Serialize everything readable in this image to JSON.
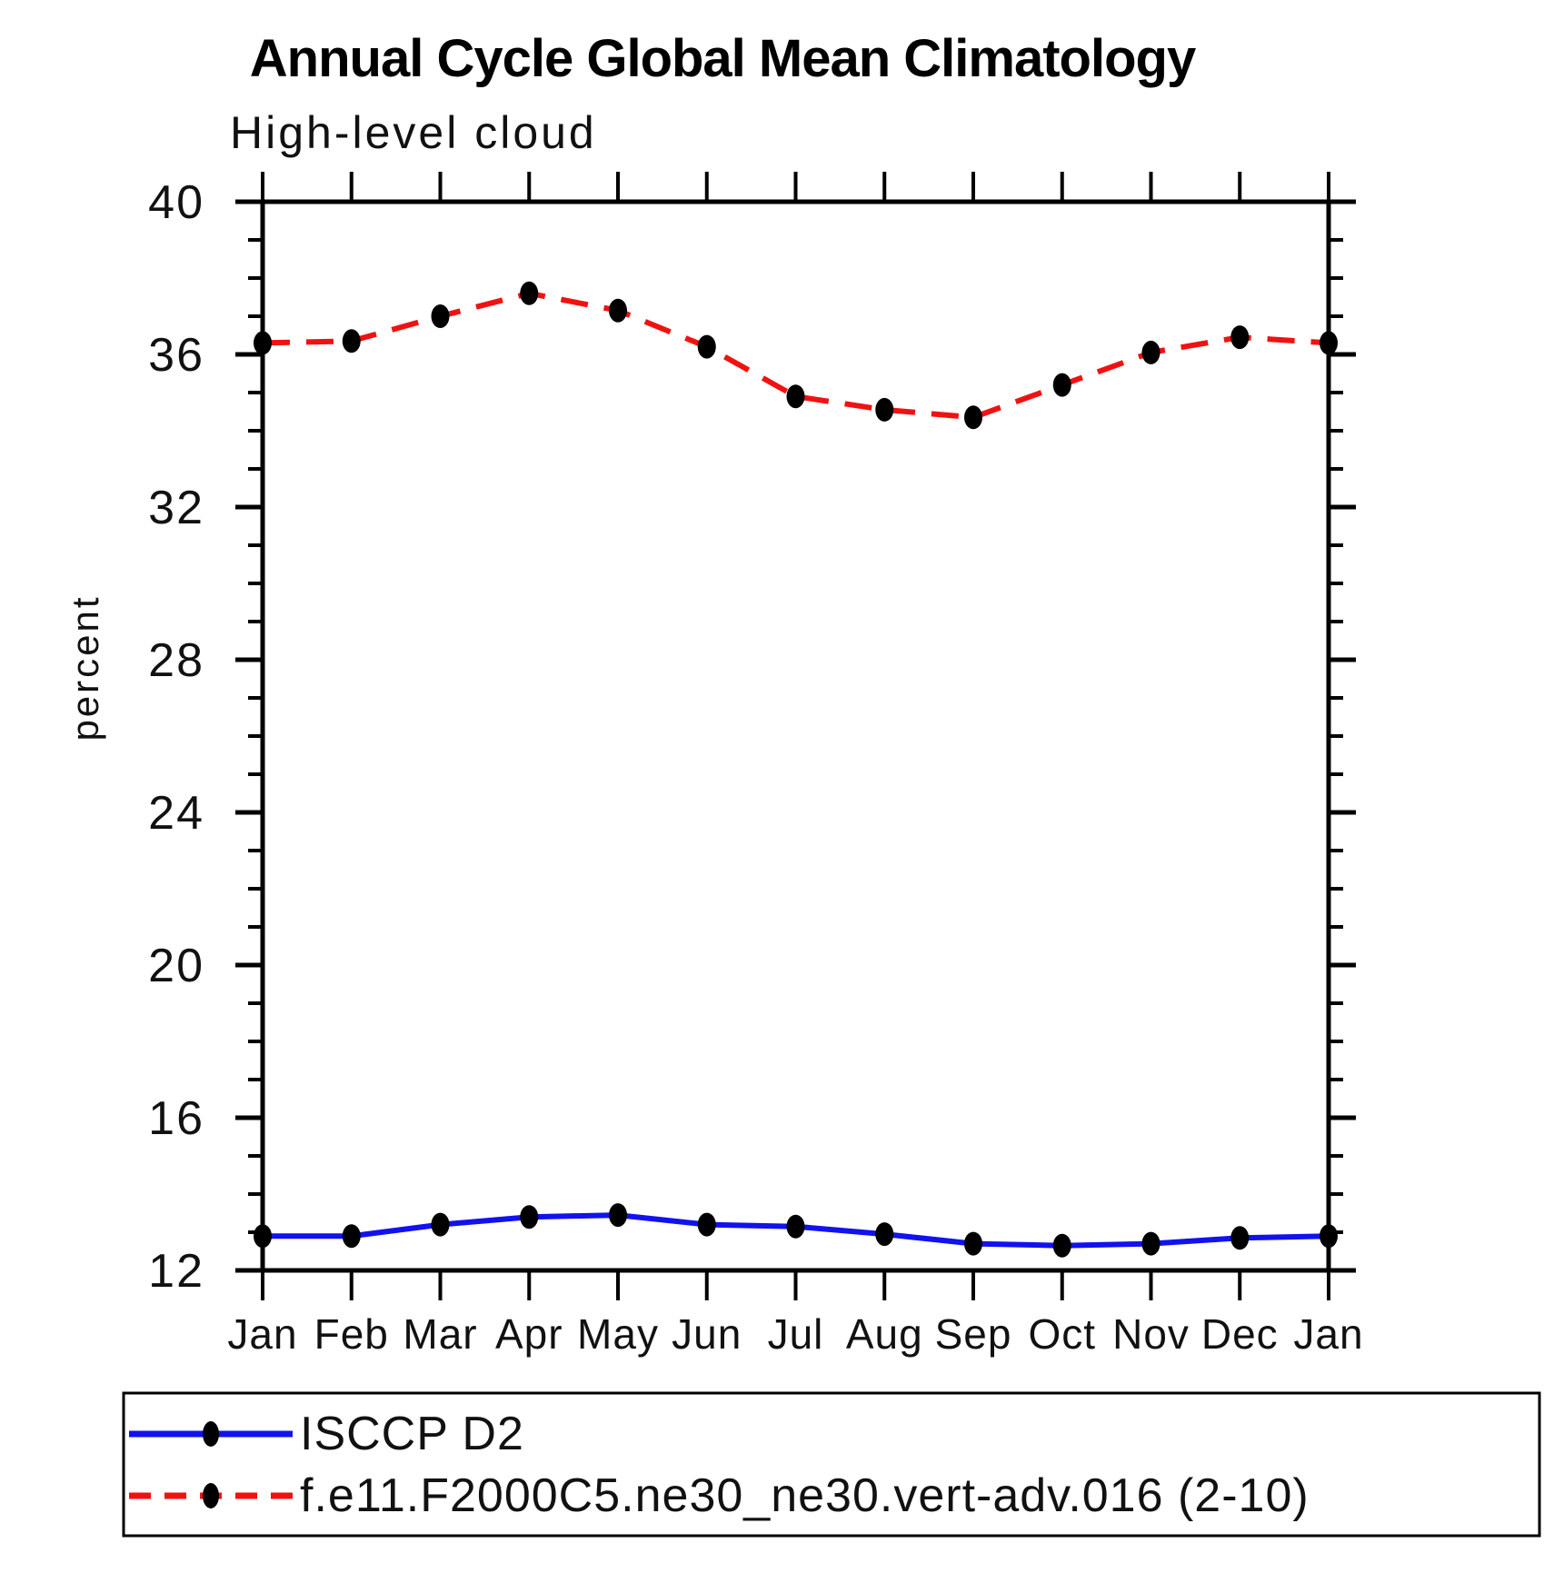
{
  "title": "Annual Cycle Global Mean Climatology",
  "subtitle": "High-level cloud",
  "ylabel": "percent",
  "colors": {
    "obs_line": "#1212ee",
    "model_line": "#f01212",
    "marker": "#000000",
    "axis": "#000000",
    "background": "#ffffff"
  },
  "chart_data": {
    "type": "line",
    "title": "Annual Cycle Global Mean Climatology",
    "subtitle": "High-level cloud",
    "xlabel": "",
    "ylabel": "percent",
    "categories": [
      "Jan",
      "Feb",
      "Mar",
      "Apr",
      "May",
      "Jun",
      "Jul",
      "Aug",
      "Sep",
      "Oct",
      "Nov",
      "Dec",
      "Jan"
    ],
    "series": [
      {
        "name": "ISCCP D2",
        "color": "#1212ee",
        "line_style": "solid",
        "marker": "filled-circle",
        "values": [
          12.9,
          12.9,
          13.2,
          13.4,
          13.45,
          13.2,
          13.15,
          12.95,
          12.7,
          12.65,
          12.7,
          12.85,
          12.9
        ]
      },
      {
        "name": "f.e11.F2000C5.ne30_ne30.vert-adv.016 (2-10)",
        "color": "#f01212",
        "line_style": "dashed",
        "marker": "filled-circle",
        "values": [
          36.3,
          36.35,
          37.0,
          37.6,
          37.15,
          36.2,
          34.9,
          34.55,
          34.35,
          35.2,
          36.05,
          36.45,
          36.3
        ]
      }
    ],
    "ylim": [
      12,
      40
    ],
    "yticks": [
      12,
      16,
      20,
      24,
      28,
      32,
      36,
      40
    ],
    "y_minor_step": 1,
    "grid": false,
    "legend_position": "bottom-box"
  }
}
